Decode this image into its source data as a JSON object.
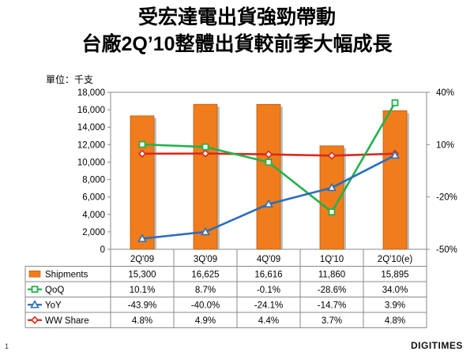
{
  "title_line1": "受宏達電出貨強勁帶動",
  "title_line2": "台廠2Q’10整體出貨較前季大幅成長",
  "unit_label": "單位：千支",
  "page_number": "1",
  "logo_text": "DIGITIMES",
  "left_axis_ticks": [
    "18,000",
    "16,000",
    "14,000",
    "12,000",
    "10,000",
    "8,000",
    "6,000",
    "4,000",
    "2,000",
    "0"
  ],
  "right_axis_ticks": [
    "40%",
    "10%",
    "-20%",
    "-50%"
  ],
  "colors": {
    "shipments": "#f07c1c",
    "qoq": "#22b14c",
    "yoy": "#2a6ebb",
    "share": "#d52b1e"
  },
  "chart_data": {
    "type": "bar+line",
    "title": "受宏達電出貨強勁帶動 台廠2Q’10整體出貨較前季大幅成長",
    "categories": [
      "2Q'09",
      "3Q'09",
      "4Q'09",
      "1Q'10",
      "2Q'10(e)"
    ],
    "ylabel": "單位：千支",
    "ylim": [
      0,
      18000
    ],
    "y2lim": [
      -50,
      40
    ],
    "series": [
      {
        "name": "Shipments",
        "axis": "left",
        "kind": "bar",
        "values": [
          15300,
          16625,
          16616,
          11860,
          15895
        ],
        "labels": [
          "15,300",
          "16,625",
          "16,616",
          "11,860",
          "15,895"
        ]
      },
      {
        "name": "QoQ",
        "axis": "right",
        "kind": "line",
        "values": [
          10.1,
          8.7,
          -0.1,
          -28.6,
          34.0
        ],
        "labels": [
          "10.1%",
          "8.7%",
          "-0.1%",
          "-28.6%",
          "34.0%"
        ]
      },
      {
        "name": "YoY",
        "axis": "right",
        "kind": "line",
        "values": [
          -43.9,
          -40.0,
          -24.1,
          -14.7,
          3.9
        ],
        "labels": [
          "-43.9%",
          "-40.0%",
          "-24.1%",
          "-14.7%",
          "3.9%"
        ]
      },
      {
        "name": "WW Share",
        "axis": "right",
        "kind": "line",
        "values": [
          4.8,
          4.9,
          4.4,
          3.7,
          4.8
        ],
        "labels": [
          "4.8%",
          "4.9%",
          "4.4%",
          "3.7%",
          "4.8%"
        ]
      }
    ]
  }
}
